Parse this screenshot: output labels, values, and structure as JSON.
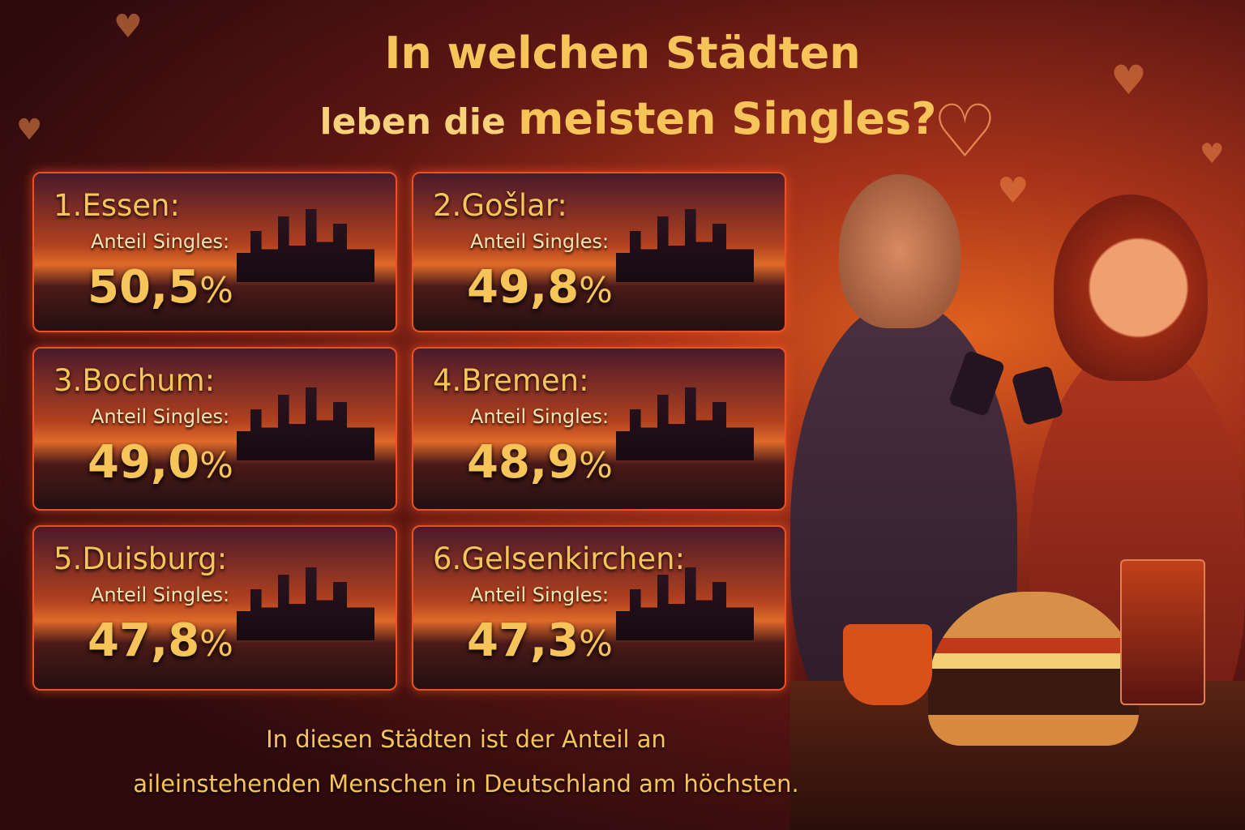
{
  "title": {
    "line1": "In welchen Städten",
    "line2_plain": "leben die",
    "line2_bold": "meisten Singles?"
  },
  "label": "Anteil Singles:",
  "cities": [
    {
      "rank": "1.",
      "name": "Essen:",
      "value": "50,5",
      "unit": "%"
    },
    {
      "rank": "2.",
      "name": "Gošlar:",
      "value": "49,8",
      "unit": "%"
    },
    {
      "rank": "3.",
      "name": "Bochum:",
      "value": "49,0",
      "unit": "%"
    },
    {
      "rank": "4.",
      "name": "Bremen:",
      "value": "48,9",
      "unit": "%"
    },
    {
      "rank": "5.",
      "name": "Duisburg:",
      "value": "47,8",
      "unit": "%"
    },
    {
      "rank": "6.",
      "name": "Gelsenkirchen:",
      "value": "47,3",
      "unit": "%"
    }
  ],
  "footer": {
    "line1": "In diesen Städten ist der Anteil an",
    "line2": "aileinstehenden Menschen in Deutschland am höchsten."
  },
  "colors": {
    "accent": "#f7c45a",
    "border": "#e9512a",
    "background": "#2e0a0d"
  },
  "icons": [
    "heart-icon"
  ]
}
